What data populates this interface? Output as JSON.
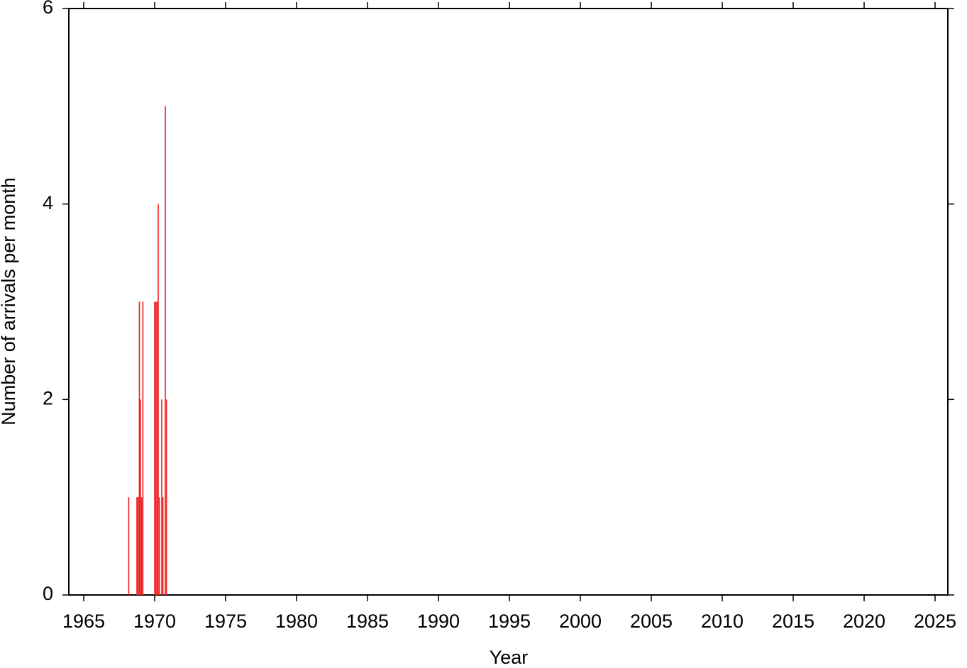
{
  "chart_data": {
    "type": "bar",
    "xlabel": "Year",
    "ylabel": "Number of arrivals per month",
    "x": [
      1968.17,
      1968.75,
      1968.83,
      1968.92,
      1969.0,
      1969.08,
      1969.17,
      1970.0,
      1970.08,
      1970.17,
      1970.25,
      1970.33,
      1970.5,
      1970.58,
      1970.75,
      1970.83
    ],
    "values": [
      1,
      1,
      1,
      3,
      2,
      1,
      3,
      3,
      3,
      3,
      4,
      1,
      2,
      1,
      5,
      2
    ],
    "color": "#f02020",
    "xlim": [
      1963.95,
      2025.9
    ],
    "xticks": [
      1965,
      1970,
      1975,
      1980,
      1985,
      1990,
      1995,
      2000,
      2005,
      2010,
      2015,
      2020,
      2025
    ],
    "ylim": [
      0,
      6
    ],
    "yticks": [
      0,
      2,
      4,
      6
    ]
  }
}
